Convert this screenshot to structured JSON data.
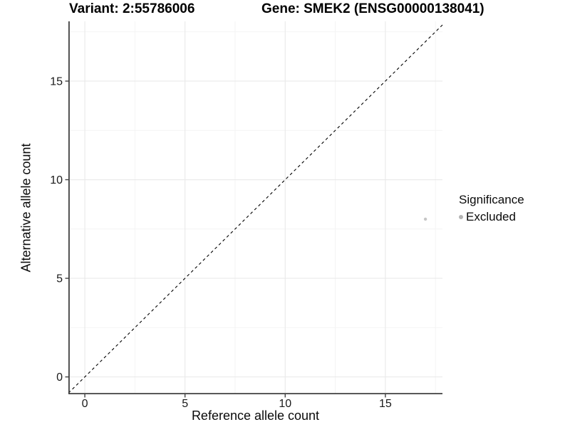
{
  "titles": {
    "variant": "Variant: 2:55786006",
    "gene": "Gene: SMEK2 (ENSG00000138041)"
  },
  "legend": {
    "title": "Significance",
    "items": [
      {
        "label": "Excluded",
        "color": "#b3b3b3"
      }
    ]
  },
  "colors": {
    "background": "#ffffff",
    "axis_line": "#404040",
    "tick_text": "#1a1a1a",
    "major_grid": "#e9e9e9",
    "minor_grid": "#f4f4f4",
    "abline": "#000000",
    "point": "#c6c6c6"
  },
  "chart_data": {
    "type": "scatter",
    "title_left": "Variant: 2:55786006",
    "title_right": "Gene: SMEK2 (ENSG00000138041)",
    "xlabel": "Reference allele count",
    "ylabel": "Alternative allele count",
    "xlim": [
      -0.82,
      17.85
    ],
    "ylim": [
      -0.88,
      18.03
    ],
    "x_major_ticks": [
      0,
      5,
      10,
      15
    ],
    "y_major_ticks": [
      0,
      5,
      10,
      15
    ],
    "minor_step": 2.5,
    "grid": true,
    "points": [
      {
        "x": 17,
        "y": 8,
        "series": "Excluded",
        "color": "#c6c6c6",
        "radius": 2.2
      }
    ],
    "abline": {
      "slope": 1,
      "intercept": 0,
      "style": "dashed",
      "color": "#000000"
    },
    "legend_position": "right",
    "legend_title": "Significance",
    "legend_entries": [
      "Excluded"
    ]
  }
}
